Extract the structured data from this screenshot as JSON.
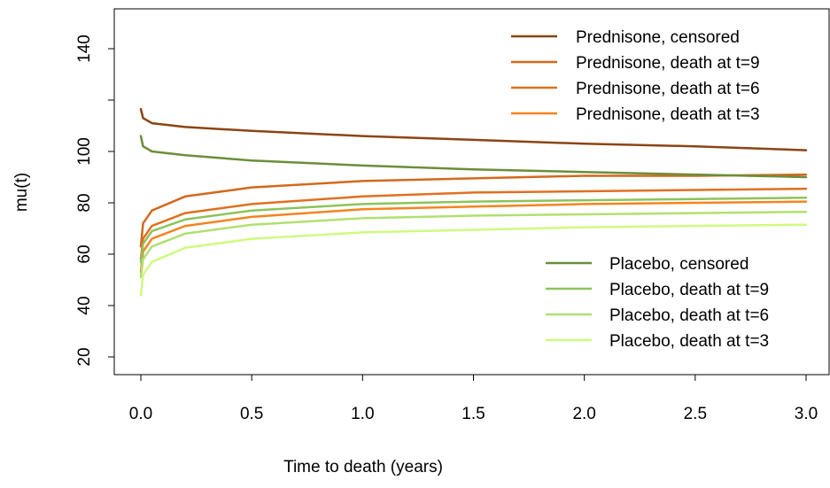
{
  "chart_data": {
    "type": "line",
    "title": "",
    "xlabel": "Time to death (years)",
    "ylabel": "mu(t)",
    "xlim": [
      0,
      3
    ],
    "ylim": [
      20,
      150
    ],
    "x_ticks": [
      0.0,
      0.5,
      1.0,
      1.5,
      2.0,
      2.5,
      3.0
    ],
    "x_tick_labels": [
      "0.0",
      "0.5",
      "1.0",
      "1.5",
      "2.0",
      "2.5",
      "3.0"
    ],
    "y_ticks": [
      20,
      40,
      60,
      80,
      100,
      120,
      140
    ],
    "y_tick_labels": [
      "20",
      "40",
      "60",
      "80",
      "100",
      "",
      "140"
    ],
    "grid": false,
    "legend_placement": [
      "top-right",
      "bottom-right"
    ],
    "series": [
      {
        "name": "Prednisone, censored",
        "color": "#8B4513",
        "x": [
          0,
          0.01,
          0.05,
          0.2,
          0.5,
          1.0,
          1.5,
          2.0,
          2.5,
          3.0
        ],
        "y": [
          116.5,
          113,
          111,
          109.5,
          108,
          106,
          104.5,
          103,
          102,
          100.5
        ]
      },
      {
        "name": "Prednisone, death at t=9",
        "color": "#D2691E",
        "x": [
          0,
          0.01,
          0.05,
          0.2,
          0.5,
          1.0,
          1.5,
          2.0,
          2.5,
          3.0
        ],
        "y": [
          63,
          72,
          77,
          82.5,
          86,
          88.5,
          89.5,
          90.5,
          90.5,
          91
        ]
      },
      {
        "name": "Prednisone, death at t=6",
        "color": "#E07020",
        "x": [
          0,
          0.01,
          0.05,
          0.2,
          0.5,
          1.0,
          1.5,
          2.0,
          2.5,
          3.0
        ],
        "y": [
          58,
          66,
          71,
          76,
          79.5,
          82.5,
          84,
          84.5,
          85,
          85.5
        ]
      },
      {
        "name": "Prednisone, death at t=3",
        "color": "#F5841F",
        "x": [
          0,
          0.01,
          0.05,
          0.2,
          0.5,
          1.0,
          1.5,
          2.0,
          2.5,
          3.0
        ],
        "y": [
          53,
          61,
          66,
          71,
          74.5,
          77.5,
          78.5,
          79.5,
          80,
          80.5
        ]
      },
      {
        "name": "Placebo, censored",
        "color": "#6B8E3A",
        "x": [
          0,
          0.01,
          0.05,
          0.2,
          0.5,
          1.0,
          1.5,
          2.0,
          2.5,
          3.0
        ],
        "y": [
          106,
          102,
          100,
          98.5,
          96.5,
          94.5,
          93,
          92,
          91,
          90
        ]
      },
      {
        "name": "Placebo, death at t=9",
        "color": "#8DC35A",
        "x": [
          0,
          0.01,
          0.05,
          0.2,
          0.5,
          1.0,
          1.5,
          2.0,
          2.5,
          3.0
        ],
        "y": [
          57,
          64,
          69,
          73.5,
          77,
          79.5,
          80.5,
          81,
          81.5,
          82
        ]
      },
      {
        "name": "Placebo, death at t=6",
        "color": "#B0E070",
        "x": [
          0,
          0.01,
          0.05,
          0.2,
          0.5,
          1.0,
          1.5,
          2.0,
          2.5,
          3.0
        ],
        "y": [
          51,
          58,
          63,
          68,
          71.5,
          74,
          75,
          75.5,
          76,
          76.5
        ]
      },
      {
        "name": "Placebo, death at t=3",
        "color": "#CFFA80",
        "x": [
          0,
          0.01,
          0.05,
          0.2,
          0.5,
          1.0,
          1.5,
          2.0,
          2.5,
          3.0
        ],
        "y": [
          44,
          52,
          57,
          62.5,
          66,
          68.5,
          69.5,
          70.5,
          71,
          71.5
        ]
      }
    ],
    "legends": [
      {
        "placement": "top-right",
        "series": [
          0,
          1,
          2,
          3
        ]
      },
      {
        "placement": "bottom-right",
        "series": [
          4,
          5,
          6,
          7
        ]
      }
    ]
  }
}
